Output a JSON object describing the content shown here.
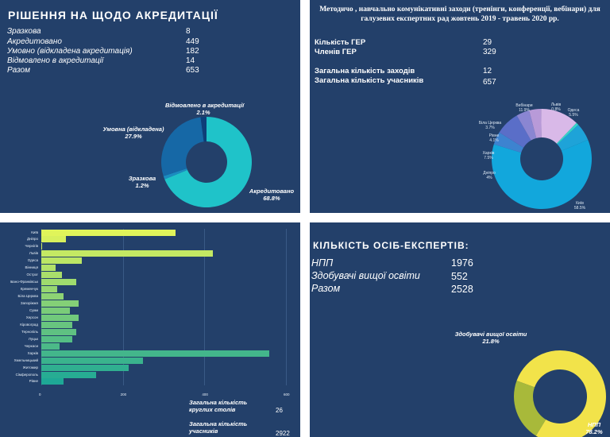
{
  "panel1": {
    "title": "РІШЕННЯ НА ЩОДО АКРЕДИТАЦІЇ",
    "rows": [
      {
        "label": "Зразкова",
        "value": "8"
      },
      {
        "label": "Акредитовано",
        "value": "449"
      },
      {
        "label": "Умовно  (відкладена  акредитація)",
        "value": "182"
      },
      {
        "label": "Відмовлено в акредитації",
        "value": "14"
      },
      {
        "label": "Разом",
        "value": "653"
      }
    ],
    "slice_labels": [
      {
        "name": "Відмовлено в акредитації",
        "pct": "2.1%"
      },
      {
        "name": "Умовна (відкладена)",
        "pct": "27.9%"
      },
      {
        "name": "Зразкова",
        "pct": "1.2%"
      },
      {
        "name": "Акредитовано",
        "pct": "68.8%"
      }
    ]
  },
  "panel2": {
    "title": "Методичо , навчально комунікативні заходи  (тренінги, конференції, вебінари)  для галузевих експертних рад жовтень 2019 - травень 2020 рр.",
    "rows": [
      {
        "label": "Кількість ГЕР",
        "value": "29"
      },
      {
        "label": "Членів ГЕР",
        "value": "329"
      },
      {
        "label": "Загальна кількість заходів",
        "value": "12"
      },
      {
        "label": "Загальна кількість учасників",
        "value": "657"
      }
    ]
  },
  "panel3": {
    "footer": [
      {
        "label": "Загальна кількість круглих столів",
        "value": "26"
      },
      {
        "label": "Загальна кількість учасників",
        "value": "2922"
      }
    ]
  },
  "panel4": {
    "title": "КІЛЬКІСТЬ ОСІБ-ЕКСПЕРТІВ:",
    "rows": [
      {
        "label": "НПП",
        "value": "1976"
      },
      {
        "label": "Здобувачі вищої освіти",
        "value": "552"
      },
      {
        "label": "Разом",
        "value": "2528"
      }
    ],
    "slice_labels": [
      {
        "name": "Здобувачі вищої освіти",
        "pct": "21.8%"
      },
      {
        "name": "НПП",
        "pct": "78.2%"
      }
    ]
  },
  "chart_data": [
    {
      "type": "pie",
      "title": "",
      "labels": [
        "Акредитовано",
        "Зразкова",
        "Умовна (відкладена)",
        "Відмовлено в акредитації"
      ],
      "values": [
        68.8,
        1.2,
        27.9,
        2.1
      ],
      "colors": [
        "#1fc3c9",
        "#1b8cc0",
        "#1668a6",
        "#0e3e78"
      ]
    },
    {
      "type": "pie",
      "title": "",
      "labels": [
        "Львів",
        "Одеса",
        "Київ",
        "Дніпро",
        "Харків",
        "Рівне",
        "Біла Церква",
        "Вебінари"
      ],
      "display_labels": [
        "Львів",
        "Одеса",
        "Київ",
        "Дніпро",
        "Харків",
        "Рівне",
        "Біла Церква",
        "Вебінари"
      ],
      "pct_labels": [
        "0.8%",
        "5.5%",
        "58.5%",
        "4%",
        "7.5%",
        "4.1%",
        "3.7%",
        "11.9%"
      ],
      "values": [
        0.8,
        5.5,
        58.5,
        4,
        7.5,
        4.1,
        3.7,
        11.9
      ],
      "colors": [
        "#34d3c8",
        "#1ea3d8",
        "#12a7dc",
        "#3d83d0",
        "#5a6ec8",
        "#8a86d2",
        "#b89ad8",
        "#d9b9e8"
      ]
    },
    {
      "type": "bar",
      "orientation": "horizontal",
      "categories": [
        "Київ",
        "Дніпро",
        "Чернігів",
        "Львів",
        "Одеса",
        "Вінниця",
        "Острог",
        "Івано-Франківськ",
        "Кременчук",
        "Біла Церква",
        "Запоріжжя",
        "Суми",
        "Херсон",
        "Кіровоград",
        "Тернопіль",
        "Луцьк",
        "Черкаси",
        "Харків",
        "Хмельницький",
        "Житомир",
        "Сімферополь",
        "Рівне"
      ],
      "values": [
        330,
        60,
        2,
        420,
        100,
        35,
        50,
        85,
        38,
        55,
        92,
        70,
        92,
        76,
        86,
        75,
        45,
        560,
        250,
        215,
        135,
        55
      ],
      "xticks": [
        0,
        200,
        400,
        600
      ],
      "xlim": [
        0,
        600
      ]
    },
    {
      "type": "pie",
      "title": "",
      "labels": [
        "НПП",
        "Здобувачі вищої освіти"
      ],
      "values": [
        78.2,
        21.8
      ],
      "colors": [
        "#f2e34a",
        "#a8b93a"
      ]
    }
  ]
}
